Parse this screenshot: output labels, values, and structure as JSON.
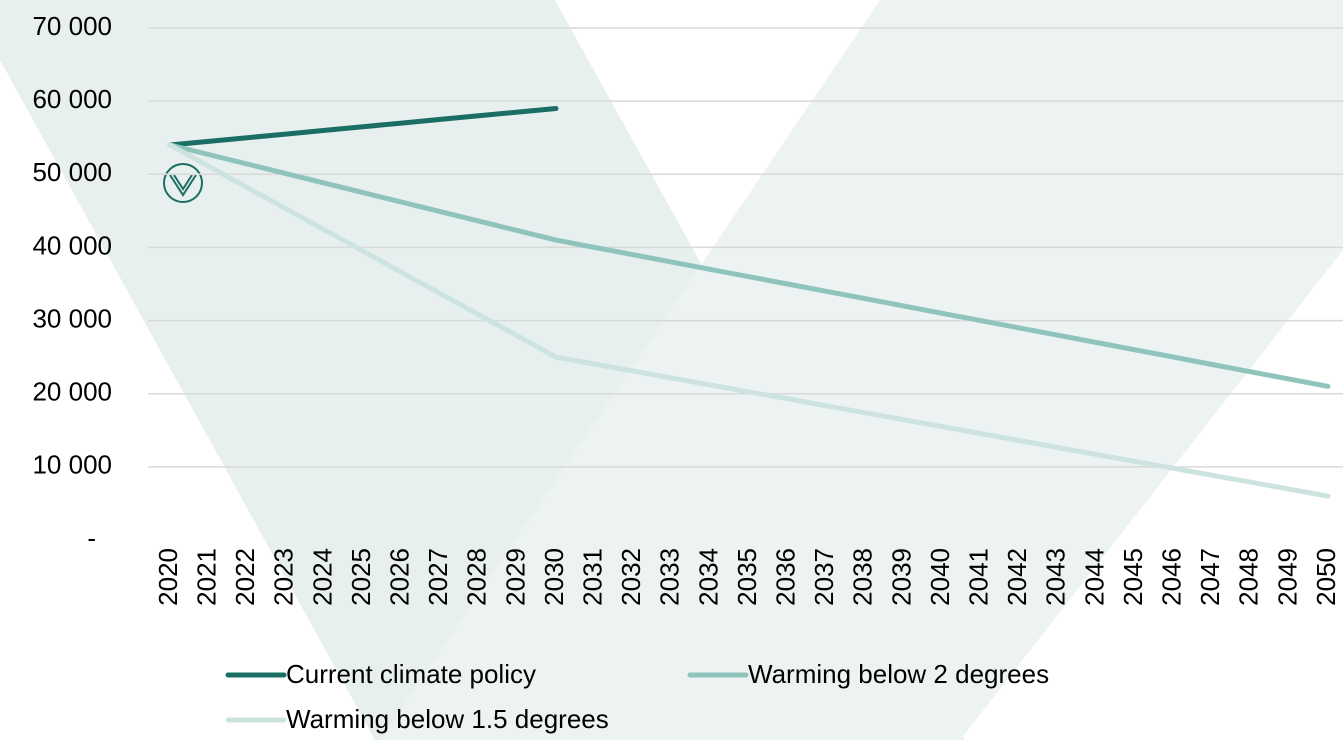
{
  "chart_data": {
    "type": "line",
    "categories": [
      "2020",
      "2021",
      "2022",
      "2023",
      "2024",
      "2025",
      "2026",
      "2027",
      "2028",
      "2029",
      "2030",
      "2031",
      "2032",
      "2033",
      "2034",
      "2035",
      "2036",
      "2037",
      "2038",
      "2039",
      "2040",
      "2041",
      "2042",
      "2043",
      "2044",
      "2045",
      "2046",
      "2047",
      "2048",
      "2049",
      "2050"
    ],
    "series": [
      {
        "name": "Current climate policy",
        "color": "#1a6e64",
        "values": [
          54000,
          54500,
          55000,
          55500,
          56000,
          56500,
          57000,
          57500,
          58000,
          58500,
          59000,
          null,
          null,
          null,
          null,
          null,
          null,
          null,
          null,
          null,
          null,
          null,
          null,
          null,
          null,
          null,
          null,
          null,
          null,
          null,
          null
        ]
      },
      {
        "name": "Warming below 2 degrees",
        "color": "#8fc4bc",
        "values": [
          54000,
          52700,
          51400,
          50100,
          48800,
          47500,
          46200,
          44900,
          43600,
          42300,
          41000,
          40000,
          39000,
          38000,
          37000,
          36000,
          35000,
          34000,
          33000,
          32000,
          31000,
          30000,
          29000,
          28000,
          27000,
          26000,
          25000,
          24000,
          23000,
          22000,
          21000
        ]
      },
      {
        "name": "Warming below 1.5 degrees",
        "color": "#cde3e0",
        "values": [
          54000,
          51100,
          48200,
          45300,
          42400,
          39500,
          36600,
          33700,
          30800,
          27900,
          25000,
          24050,
          23100,
          22150,
          21200,
          20250,
          19300,
          18350,
          17400,
          16450,
          15500,
          14550,
          13600,
          12650,
          11700,
          10750,
          9800,
          8850,
          7900,
          6950,
          6000
        ]
      }
    ],
    "ylim": [
      0,
      70000
    ],
    "yticks": [
      {
        "value": 0,
        "label": "-"
      },
      {
        "value": 10000,
        "label": "10 000"
      },
      {
        "value": 20000,
        "label": "20 000"
      },
      {
        "value": 30000,
        "label": "30 000"
      },
      {
        "value": 40000,
        "label": "40 000"
      },
      {
        "value": 50000,
        "label": "50 000"
      },
      {
        "value": 60000,
        "label": "60 000"
      },
      {
        "value": 70000,
        "label": "70 000"
      }
    ],
    "grid": true
  }
}
